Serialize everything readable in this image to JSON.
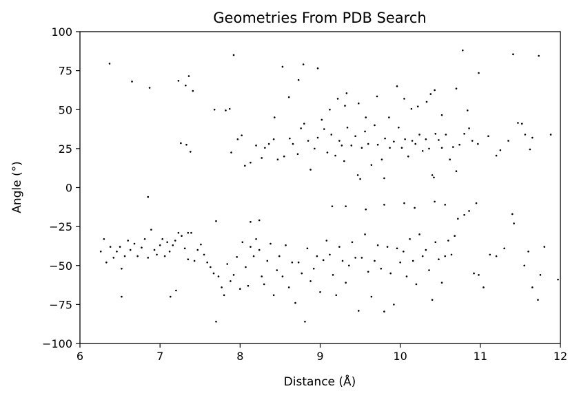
{
  "chart_data": {
    "type": "scatter",
    "title": "Geometries From PDB Search",
    "xlabel": "Distance (Å)",
    "ylabel": "Angle (°)",
    "xlim": [
      6,
      12
    ],
    "ylim": [
      -100,
      100
    ],
    "xticks": [
      6,
      7,
      8,
      9,
      10,
      11,
      12
    ],
    "yticks": [
      -100,
      -75,
      -50,
      -25,
      0,
      25,
      50,
      75,
      100
    ],
    "xtick_labels": [
      "6",
      "7",
      "8",
      "9",
      "10",
      "11",
      "12"
    ],
    "ytick_labels": [
      "−100",
      "−75",
      "−50",
      "−25",
      "0",
      "25",
      "50",
      "75",
      "100"
    ],
    "grid": false,
    "legend": false,
    "marker_color": "#000000",
    "series": [
      {
        "points": [
          [
            6.37,
            79.5
          ],
          [
            6.65,
            68
          ],
          [
            6.87,
            64
          ],
          [
            7.23,
            68.5
          ],
          [
            7.32,
            65.5
          ],
          [
            7.36,
            71.5
          ],
          [
            7.41,
            62
          ],
          [
            7.68,
            50
          ],
          [
            7.82,
            49.5
          ],
          [
            7.87,
            50.5
          ],
          [
            7.92,
            85
          ],
          [
            8.43,
            45
          ],
          [
            8.53,
            77.5
          ],
          [
            8.61,
            58
          ],
          [
            8.73,
            69
          ],
          [
            8.79,
            79
          ],
          [
            8.97,
            76.5
          ],
          [
            9.12,
            50
          ],
          [
            9.22,
            57
          ],
          [
            9.31,
            52.5
          ],
          [
            9.33,
            60.5
          ],
          [
            9.48,
            54
          ],
          [
            9.57,
            45
          ],
          [
            9.71,
            58.5
          ],
          [
            9.86,
            45
          ],
          [
            9.96,
            65
          ],
          [
            10.05,
            57
          ],
          [
            10.14,
            50.5
          ],
          [
            10.22,
            52
          ],
          [
            10.33,
            55
          ],
          [
            10.38,
            60
          ],
          [
            10.43,
            62.5
          ],
          [
            10.52,
            46.5
          ],
          [
            10.7,
            63.5
          ],
          [
            10.78,
            88
          ],
          [
            10.84,
            49.5
          ],
          [
            10.98,
            73.5
          ],
          [
            11.41,
            85.5
          ],
          [
            11.47,
            41.5
          ],
          [
            11.52,
            41
          ],
          [
            11.56,
            34
          ],
          [
            11.65,
            32
          ],
          [
            11.73,
            84.5
          ],
          [
            11.88,
            34
          ],
          [
            7.26,
            28.5
          ],
          [
            7.33,
            27.5
          ],
          [
            7.38,
            23
          ],
          [
            7.89,
            22.5
          ],
          [
            7.97,
            31
          ],
          [
            8.02,
            33.5
          ],
          [
            8.06,
            14
          ],
          [
            8.13,
            16
          ],
          [
            8.2,
            27
          ],
          [
            8.27,
            19
          ],
          [
            8.31,
            25.5
          ],
          [
            8.36,
            28
          ],
          [
            8.42,
            31
          ],
          [
            8.47,
            18
          ],
          [
            8.55,
            20
          ],
          [
            8.62,
            31.5
          ],
          [
            8.66,
            28
          ],
          [
            8.72,
            21.5
          ],
          [
            8.76,
            38
          ],
          [
            8.8,
            41
          ],
          [
            8.85,
            30
          ],
          [
            8.88,
            11.5
          ],
          [
            8.93,
            25
          ],
          [
            8.97,
            32
          ],
          [
            9.02,
            43.5
          ],
          [
            9.05,
            37.5
          ],
          [
            9.09,
            22.5
          ],
          [
            9.14,
            34
          ],
          [
            9.19,
            20.5
          ],
          [
            9.24,
            30
          ],
          [
            9.27,
            27
          ],
          [
            9.3,
            17
          ],
          [
            9.34,
            38.5
          ],
          [
            9.39,
            27
          ],
          [
            9.44,
            33
          ],
          [
            9.47,
            8
          ],
          [
            9.52,
            25.5
          ],
          [
            9.56,
            36
          ],
          [
            9.6,
            28
          ],
          [
            9.64,
            14.5
          ],
          [
            9.68,
            40
          ],
          [
            9.72,
            27.5
          ],
          [
            9.77,
            18
          ],
          [
            9.81,
            31.5
          ],
          [
            9.87,
            25.5
          ],
          [
            9.92,
            29.5
          ],
          [
            9.98,
            38.5
          ],
          [
            10.02,
            25.5
          ],
          [
            10.06,
            31
          ],
          [
            10.1,
            20
          ],
          [
            10.15,
            30
          ],
          [
            10.19,
            28
          ],
          [
            10.24,
            34
          ],
          [
            10.28,
            23.5
          ],
          [
            10.32,
            31
          ],
          [
            10.36,
            25
          ],
          [
            10.4,
            8
          ],
          [
            10.44,
            34.5
          ],
          [
            10.48,
            30.5
          ],
          [
            10.52,
            25.5
          ],
          [
            10.57,
            34
          ],
          [
            10.62,
            18
          ],
          [
            10.66,
            26
          ],
          [
            10.7,
            10.5
          ],
          [
            10.74,
            27.5
          ],
          [
            10.8,
            34.5
          ],
          [
            10.86,
            38
          ],
          [
            10.9,
            30
          ],
          [
            10.97,
            28
          ],
          [
            11.1,
            33
          ],
          [
            11.2,
            20.5
          ],
          [
            11.25,
            24
          ],
          [
            11.35,
            30
          ],
          [
            11.62,
            24.5
          ],
          [
            9.5,
            5.5
          ],
          [
            9.8,
            6
          ],
          [
            10.42,
            6.5
          ],
          [
            6.26,
            -41
          ],
          [
            6.3,
            -33
          ],
          [
            6.33,
            -48
          ],
          [
            6.38,
            -38
          ],
          [
            6.42,
            -45
          ],
          [
            6.46,
            -41
          ],
          [
            6.5,
            -38
          ],
          [
            6.52,
            -52
          ],
          [
            6.56,
            -44
          ],
          [
            6.6,
            -34
          ],
          [
            6.63,
            -40
          ],
          [
            6.68,
            -36
          ],
          [
            6.72,
            -44
          ],
          [
            6.77,
            -38.5
          ],
          [
            6.81,
            -33
          ],
          [
            6.85,
            -45
          ],
          [
            6.89,
            -27
          ],
          [
            6.93,
            -40
          ],
          [
            6.96,
            -43
          ],
          [
            7.0,
            -37
          ],
          [
            7.03,
            -33
          ],
          [
            7.06,
            -44
          ],
          [
            7.09,
            -35
          ],
          [
            7.12,
            -41
          ],
          [
            7.16,
            -37
          ],
          [
            7.19,
            -34
          ],
          [
            7.23,
            -29
          ],
          [
            7.27,
            -31
          ],
          [
            7.31,
            -39
          ],
          [
            7.35,
            -46
          ],
          [
            7.39,
            -29
          ],
          [
            7.43,
            -47
          ],
          [
            7.47,
            -40
          ],
          [
            7.51,
            -36.5
          ],
          [
            7.55,
            -43
          ],
          [
            7.59,
            -48
          ],
          [
            7.63,
            -51
          ],
          [
            7.67,
            -55
          ],
          [
            7.7,
            -21.5
          ],
          [
            7.73,
            -57
          ],
          [
            7.77,
            -64
          ],
          [
            7.8,
            -69
          ],
          [
            7.84,
            -49
          ],
          [
            7.88,
            -60
          ],
          [
            7.92,
            -56
          ],
          [
            7.96,
            -44.5
          ],
          [
            8.0,
            -65
          ],
          [
            8.03,
            -35
          ],
          [
            8.07,
            -51
          ],
          [
            8.1,
            -63
          ],
          [
            8.13,
            -38
          ],
          [
            8.17,
            -44
          ],
          [
            8.2,
            -33
          ],
          [
            8.24,
            -40
          ],
          [
            8.27,
            -57
          ],
          [
            8.3,
            -62
          ],
          [
            8.34,
            -47
          ],
          [
            8.38,
            -36
          ],
          [
            8.42,
            -69
          ],
          [
            8.46,
            -53
          ],
          [
            8.49,
            -44
          ],
          [
            8.53,
            -57
          ],
          [
            8.57,
            -37
          ],
          [
            8.61,
            -64
          ],
          [
            8.65,
            -48
          ],
          [
            8.69,
            -74
          ],
          [
            8.73,
            -48
          ],
          [
            8.77,
            -55
          ],
          [
            8.81,
            -86
          ],
          [
            8.84,
            -39
          ],
          [
            8.88,
            -60
          ],
          [
            8.92,
            -52
          ],
          [
            8.96,
            -44
          ],
          [
            9.0,
            -67
          ],
          [
            9.04,
            -46.5
          ],
          [
            9.08,
            -34
          ],
          [
            9.12,
            -43
          ],
          [
            9.16,
            -56
          ],
          [
            9.2,
            -69
          ],
          [
            9.24,
            -38
          ],
          [
            9.28,
            -47
          ],
          [
            9.32,
            -61
          ],
          [
            9.36,
            -50
          ],
          [
            9.4,
            -35
          ],
          [
            9.44,
            -45
          ],
          [
            9.48,
            -79
          ],
          [
            9.52,
            -45
          ],
          [
            9.56,
            -30
          ],
          [
            9.6,
            -54
          ],
          [
            9.64,
            -70
          ],
          [
            9.68,
            -47
          ],
          [
            9.72,
            -37
          ],
          [
            9.76,
            -52
          ],
          [
            9.8,
            -79.5
          ],
          [
            9.84,
            -38
          ],
          [
            9.88,
            -55
          ],
          [
            9.92,
            -75
          ],
          [
            9.96,
            -39
          ],
          [
            10.0,
            -48
          ],
          [
            10.04,
            -41
          ],
          [
            10.08,
            -57
          ],
          [
            10.12,
            -33
          ],
          [
            10.16,
            -47
          ],
          [
            10.2,
            -62
          ],
          [
            10.24,
            -30
          ],
          [
            10.28,
            -44
          ],
          [
            10.32,
            -40
          ],
          [
            10.36,
            -53
          ],
          [
            10.4,
            -72
          ],
          [
            10.44,
            -35
          ],
          [
            10.48,
            -46
          ],
          [
            10.52,
            -61
          ],
          [
            10.56,
            -44
          ],
          [
            10.6,
            -34
          ],
          [
            10.64,
            -43
          ],
          [
            10.68,
            -31
          ],
          [
            10.72,
            -20
          ],
          [
            10.8,
            -17.5
          ],
          [
            10.86,
            -15
          ],
          [
            10.92,
            -55
          ],
          [
            10.98,
            -56
          ],
          [
            11.04,
            -64
          ],
          [
            11.12,
            -43
          ],
          [
            11.2,
            -44
          ],
          [
            11.3,
            -39
          ],
          [
            11.42,
            -23
          ],
          [
            11.55,
            -50
          ],
          [
            11.6,
            -41
          ],
          [
            11.65,
            -64
          ],
          [
            11.72,
            -72
          ],
          [
            11.75,
            -56
          ],
          [
            11.8,
            -38
          ],
          [
            11.97,
            -59
          ],
          [
            6.52,
            -70
          ],
          [
            6.85,
            -6
          ],
          [
            7.13,
            -70
          ],
          [
            7.2,
            -66
          ],
          [
            7.35,
            -29
          ],
          [
            7.7,
            -86
          ],
          [
            8.13,
            -22
          ],
          [
            8.24,
            -21
          ],
          [
            9.15,
            -12
          ],
          [
            9.32,
            -12
          ],
          [
            9.57,
            -14
          ],
          [
            9.8,
            -11
          ],
          [
            10.05,
            -10
          ],
          [
            10.18,
            -13
          ],
          [
            10.43,
            -9
          ],
          [
            10.56,
            -11
          ],
          [
            10.95,
            -10
          ],
          [
            11.4,
            -17
          ]
        ]
      }
    ]
  }
}
